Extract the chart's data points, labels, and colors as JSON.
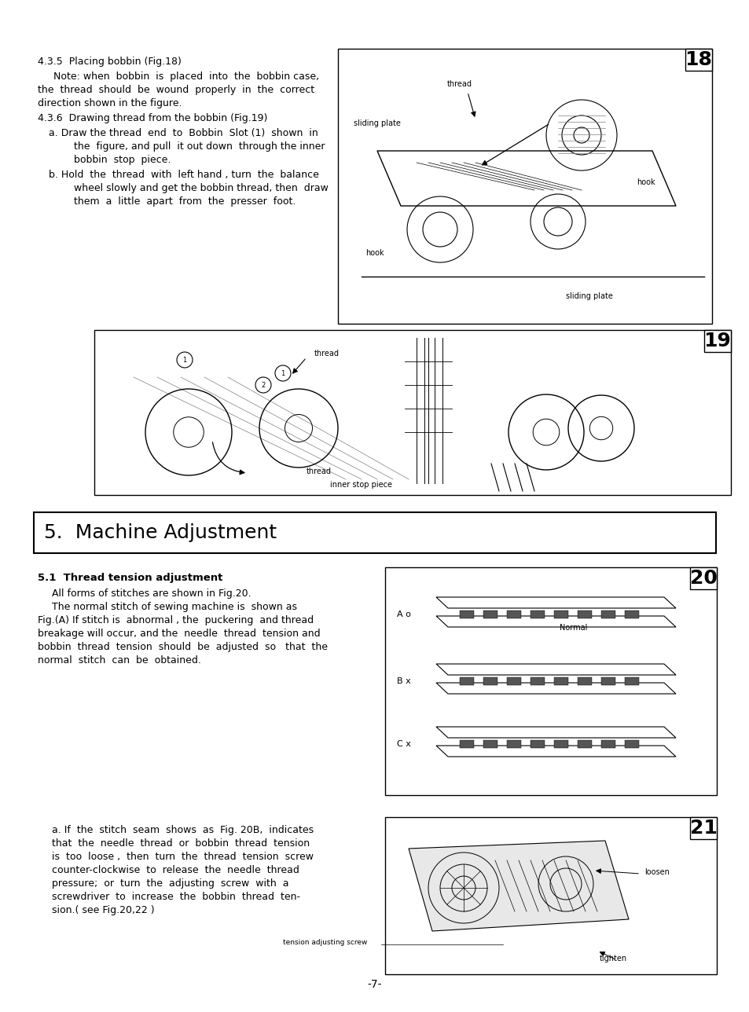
{
  "page_background": "#ffffff",
  "page_width": 9.54,
  "page_height": 12.88,
  "dpi": 100,
  "text_color": "#000000",
  "section_heading": "5.  Machine Adjustment",
  "section_heading_fontsize": 18,
  "subheading_51": "5.1  Thread tension adjustment",
  "subheading_51_fontsize": 9.5,
  "body_fontsize": 9,
  "small_fontsize": 7,
  "page_number": "-7-",
  "heading_435": "4.3.5  Placing bobbin (Fig.18)",
  "note_435_1": "Note: when  bobbin  is  placed  into  the  bobbin case,",
  "note_435_2": "the  thread  should  be  wound  properly  in  the  correct",
  "note_435_3": "direction shown in the figure.",
  "heading_436": "4.3.6  Drawing thread from the bobbin (Fig.19)",
  "item_a_436_1": "a. Draw the thread  end  to  Bobbin  Slot (1)  shown  in",
  "item_a_436_2": "    the  figure, and pull  it out down  through the inner",
  "item_a_436_3": "    bobbin  stop  piece.",
  "item_b_436_1": "b. Hold  the  thread  with  left hand , turn  the  balance",
  "item_b_436_2": "    wheel slowly and get the bobbin thread, then  draw",
  "item_b_436_3": "    them  a  little  apart  from  the  presser  foot.",
  "para_51_0": "All forms of stitches are shown in Fig.20.",
  "para_51_1": "The normal stitch of sewing machine is  shown as",
  "para_51_2": "Fig.(A) If stitch is  abnormal , the  puckering  and thread",
  "para_51_3": "breakage will occur, and the  needle  thread  tension and",
  "para_51_4": "bobbin  thread  tension  should  be  adjusted  so   that  the",
  "para_51_5": "normal  stitch  can  be  obtained.",
  "para_a_1": "a. If  the  stitch  seam  shows  as  Fig. 20B,  indicates",
  "para_a_2": "that  the  needle  thread  or  bobbin  thread  tension",
  "para_a_3": "is  too  loose ,  then  turn  the  thread  tension  screw",
  "para_a_4": "counter-clockwise  to  release  the  needle  thread",
  "para_a_5": "pressure;  or  turn  the  adjusting  screw  with  a",
  "para_a_6": "screwdriver  to  increase  the  bobbin  thread  ten-",
  "para_a_7": "sion.( see Fig.20,22 )",
  "fig18_num": "18",
  "fig19_num": "19",
  "fig20_num": "20",
  "fig21_num": "21",
  "fig20_A": "A o",
  "fig20_B": "B x",
  "fig20_C": "C x",
  "fig20_normal": "Normal",
  "fig21_loosen": "loosen",
  "fig21_tighten": "tighten",
  "fig21_tension": "tension adjusting screw",
  "label_thread": "thread",
  "label_sliding_plate": "sliding plate",
  "label_hook": "hook",
  "label_hook2": "hook",
  "label_sliding_plate2": "sliding plate",
  "label_thread19": "thread",
  "label_inner_stop": "inner stop piece"
}
